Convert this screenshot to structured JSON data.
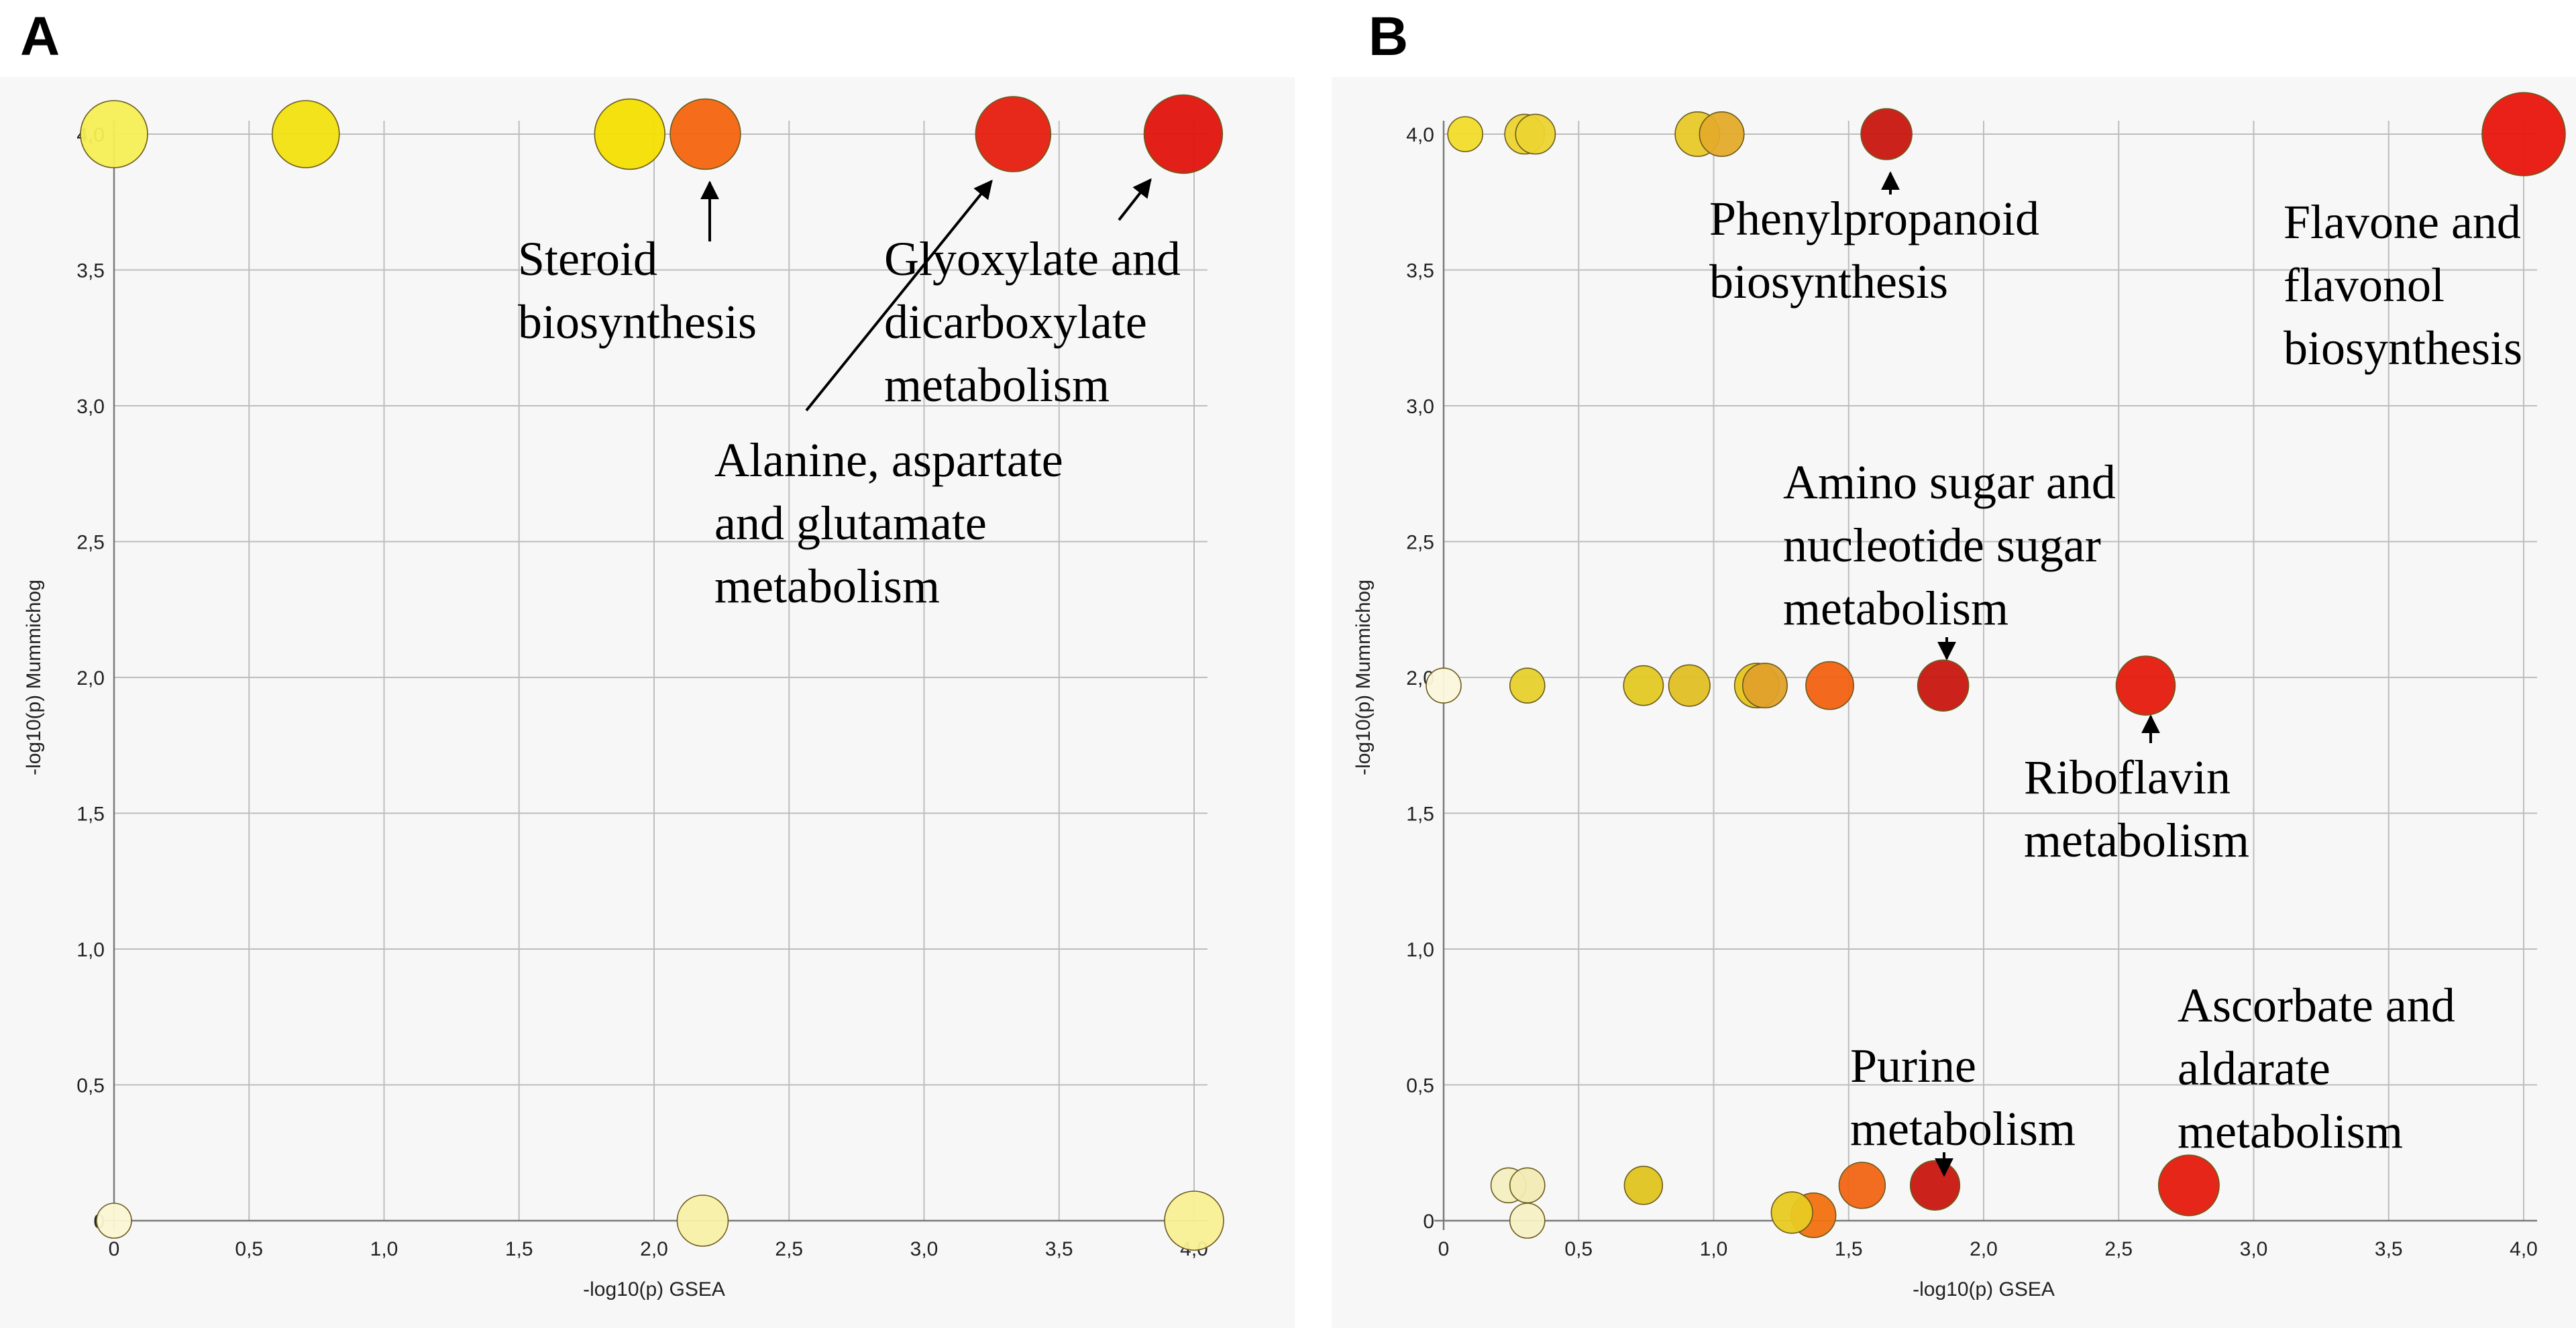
{
  "chart_data": [
    {
      "type": "scatter",
      "panel_label": "A",
      "xlabel": "-log10(p) GSEA",
      "ylabel": "-log10(p) Mummichog",
      "xlim": [
        0,
        4
      ],
      "ylim": [
        0,
        4
      ],
      "x_ticks": [
        "0",
        "0,5",
        "1,0",
        "1,5",
        "2,0",
        "2,5",
        "3,0",
        "3,5",
        "4,0"
      ],
      "y_ticks": [
        "0",
        "0,5",
        "1,0",
        "1,5",
        "2,0",
        "2,5",
        "3,0",
        "3,5",
        "4,0"
      ],
      "grid": true,
      "points": [
        {
          "x": 0.0,
          "y": 4.0,
          "size": 3,
          "color": "#f6ee55"
        },
        {
          "x": 0.71,
          "y": 4.0,
          "size": 3,
          "color": "#f2e210"
        },
        {
          "x": 1.91,
          "y": 4.0,
          "size": 3.2,
          "color": "#f3df00"
        },
        {
          "x": 2.19,
          "y": 4.0,
          "size": 3.2,
          "color": "#f4650e"
        },
        {
          "x": 3.33,
          "y": 4.0,
          "size": 3.5,
          "color": "#e51d0f"
        },
        {
          "x": 3.96,
          "y": 4.0,
          "size": 3.7,
          "color": "#e0130c"
        },
        {
          "x": 0.0,
          "y": 0.0,
          "size": 1,
          "color": "#fbf7d4"
        },
        {
          "x": 2.18,
          "y": 0.0,
          "size": 2,
          "color": "#f8f0a8"
        },
        {
          "x": 4.0,
          "y": 0.0,
          "size": 2.5,
          "color": "#f8f094"
        }
      ],
      "annotations": [
        {
          "lines": [
            "Steroid",
            "biosynthesis"
          ]
        },
        {
          "lines": [
            "Glyoxylate and",
            "dicarboxylate",
            "metabolism"
          ]
        },
        {
          "lines": [
            "Alanine, aspartate",
            "and glutamate",
            "metabolism"
          ]
        }
      ]
    },
    {
      "type": "scatter",
      "panel_label": "B",
      "xlabel": "-log10(p) GSEA",
      "ylabel": "-log10(p) Mummichog",
      "xlim": [
        0,
        4
      ],
      "ylim": [
        0,
        4
      ],
      "x_ticks": [
        "0",
        "0,5",
        "1,0",
        "1,5",
        "2,0",
        "2,5",
        "3,0",
        "3,5",
        "4,0"
      ],
      "y_ticks": [
        "0",
        "0,5",
        "1,0",
        "1,5",
        "2,0",
        "2,5",
        "3,0",
        "3,5",
        "4,0"
      ],
      "grid": true,
      "points": [
        {
          "x": 0.08,
          "y": 4.0,
          "size": 1,
          "color": "#f2dc2a"
        },
        {
          "x": 0.3,
          "y": 4.0,
          "size": 1.3,
          "color": "#ecd431"
        },
        {
          "x": 0.34,
          "y": 4.0,
          "size": 1.3,
          "color": "#ecd431"
        },
        {
          "x": 0.94,
          "y": 4.0,
          "size": 1.6,
          "color": "#e8c928"
        },
        {
          "x": 1.03,
          "y": 4.0,
          "size": 1.6,
          "color": "#e4ab2a"
        },
        {
          "x": 1.64,
          "y": 4.0,
          "size": 2,
          "color": "#c81710"
        },
        {
          "x": 4.0,
          "y": 4.0,
          "size": 4,
          "color": "#e8150c"
        },
        {
          "x": 0.0,
          "y": 1.97,
          "size": 1,
          "color": "#fbf7dc"
        },
        {
          "x": 0.31,
          "y": 1.97,
          "size": 1,
          "color": "#e6d02c"
        },
        {
          "x": 0.74,
          "y": 1.97,
          "size": 1.3,
          "color": "#e3c823"
        },
        {
          "x": 0.91,
          "y": 1.97,
          "size": 1.4,
          "color": "#e0c024"
        },
        {
          "x": 1.16,
          "y": 1.97,
          "size": 1.6,
          "color": "#e5c51e"
        },
        {
          "x": 1.19,
          "y": 1.97,
          "size": 1.6,
          "color": "#e0a12a"
        },
        {
          "x": 1.43,
          "y": 1.97,
          "size": 1.8,
          "color": "#f26112"
        },
        {
          "x": 1.85,
          "y": 1.97,
          "size": 2,
          "color": "#c81710"
        },
        {
          "x": 2.6,
          "y": 1.97,
          "size": 2.5,
          "color": "#e51a0d"
        },
        {
          "x": 0.24,
          "y": 0.13,
          "size": 1,
          "color": "#f3efc0"
        },
        {
          "x": 0.31,
          "y": 0.13,
          "size": 1,
          "color": "#f2ebb4"
        },
        {
          "x": 0.31,
          "y": 0.0,
          "size": 1,
          "color": "#f5f0c4"
        },
        {
          "x": 0.74,
          "y": 0.13,
          "size": 1.2,
          "color": "#dfc41f"
        },
        {
          "x": 1.29,
          "y": 0.03,
          "size": 1.4,
          "color": "#e8ca22"
        },
        {
          "x": 1.37,
          "y": 0.02,
          "size": 1.6,
          "color": "#f2710f"
        },
        {
          "x": 1.55,
          "y": 0.13,
          "size": 1.7,
          "color": "#f26514"
        },
        {
          "x": 1.82,
          "y": 0.13,
          "size": 1.9,
          "color": "#c81710"
        },
        {
          "x": 2.76,
          "y": 0.13,
          "size": 2.6,
          "color": "#e51a0d"
        }
      ],
      "annotations": [
        {
          "lines": [
            "Phenylpropanoid",
            "biosynthesis"
          ]
        },
        {
          "lines": [
            "Flavone and",
            "flavonol",
            "biosynthesis"
          ]
        },
        {
          "lines": [
            "Amino sugar and",
            "nucleotide sugar",
            "metabolism"
          ]
        },
        {
          "lines": [
            "Riboflavin",
            "metabolism"
          ]
        },
        {
          "lines": [
            "Purine",
            "metabolism"
          ]
        },
        {
          "lines": [
            "Ascorbate and",
            "aldarate",
            "metabolism"
          ]
        }
      ]
    }
  ]
}
